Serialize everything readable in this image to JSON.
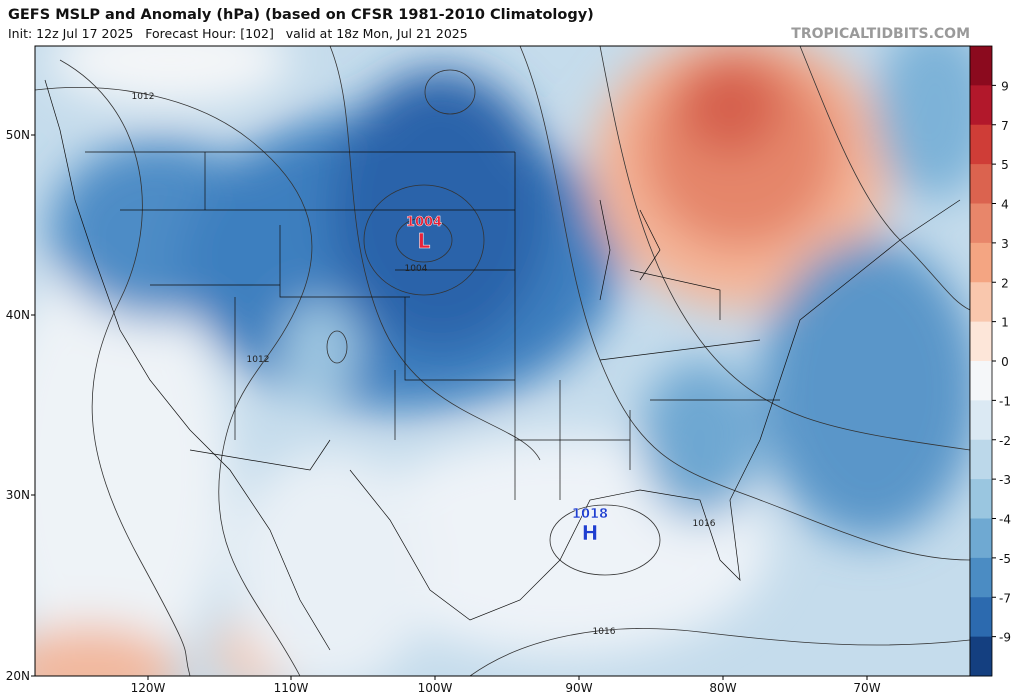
{
  "header": {
    "title": "GEFS MSLP and Anomaly (hPa) (based on CFSR 1981-2010 Climatology)",
    "subtitle": "Init: 12z Jul 17 2025   Forecast Hour: [102]   valid at 18z Mon, Jul 21 2025",
    "watermark": "TROPICALTIDBITS.COM"
  },
  "map": {
    "lat_labels": [
      "50N",
      "40N",
      "30N",
      "20N"
    ],
    "lon_labels": [
      "120W",
      "110W",
      "100W",
      "90W",
      "80W",
      "70W"
    ],
    "centers": [
      {
        "label": "L",
        "pressure": "1004",
        "color": "#e8223a"
      },
      {
        "label": "H",
        "pressure": "1018",
        "color": "#1f3fd0"
      }
    ],
    "contour_labels": [
      "1012",
      "1012",
      "1004",
      "1016",
      "1016"
    ]
  },
  "colorbar": {
    "ticks": [
      9,
      7,
      5,
      4,
      3,
      2,
      1,
      0,
      -1,
      -2,
      -3,
      -4,
      -5,
      -7,
      -9
    ],
    "colors": [
      "#8b0a1e",
      "#b2182b",
      "#cf3d37",
      "#db634f",
      "#e8866a",
      "#f4a582",
      "#f9c7ad",
      "#fde6d9",
      "#f5f7f9",
      "#dbe9f3",
      "#bcd8ea",
      "#9ac6e0",
      "#6fa9d2",
      "#4b8cc3",
      "#2c6aaf",
      "#143f80"
    ]
  }
}
